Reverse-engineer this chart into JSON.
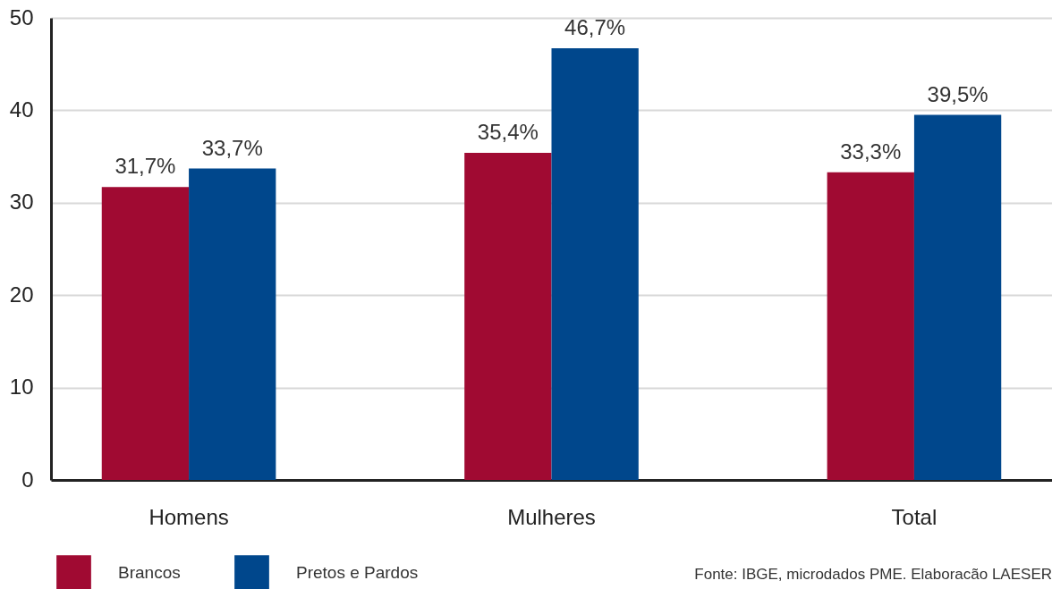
{
  "chart_data": {
    "type": "bar",
    "categories": [
      "Homens",
      "Mulheres",
      "Total"
    ],
    "series": [
      {
        "name": "Brancos",
        "color": "#a00a32",
        "values": [
          31.7,
          35.4,
          33.3
        ],
        "value_labels": [
          "31,7%",
          "35,4%",
          "33,3%"
        ]
      },
      {
        "name": "Pretos e Pardos",
        "color": "#00478c",
        "values": [
          33.7,
          46.7,
          39.5
        ],
        "value_labels": [
          "33,7%",
          "46,7%",
          "39,5%"
        ]
      }
    ],
    "ylim": [
      0,
      50
    ],
    "yticks": [
      0,
      10,
      20,
      30,
      40,
      50
    ],
    "grid": "y",
    "legend": "bottom left",
    "annotations": [
      "Fonte: IBGE, microdados PME. Elaboracão LAESER"
    ]
  }
}
